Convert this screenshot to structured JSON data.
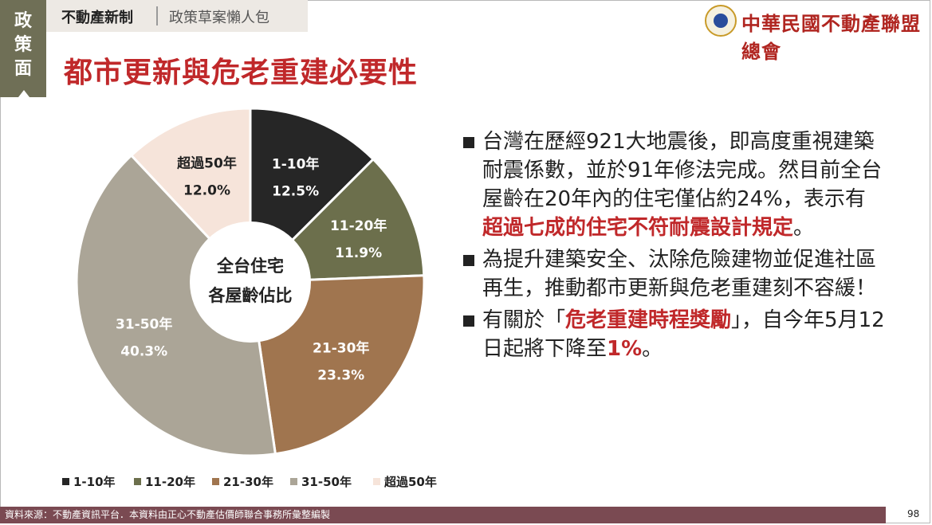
{
  "side_tab": {
    "chars": [
      "政",
      "策",
      "面"
    ]
  },
  "breadcrumb": {
    "main": "不動產新制",
    "sub": "政策草案懶人包"
  },
  "org_name": "中華民國不動產聯盟總會",
  "title": "都市更新與危老重建必要性",
  "chart_center": {
    "line1": "全台住宅",
    "line2": "各屋齡佔比"
  },
  "chart_data": {
    "type": "pie",
    "categories": [
      "1-10年",
      "11-20年",
      "21-30年",
      "31-50年",
      "超過50年"
    ],
    "values": [
      12.5,
      11.9,
      23.3,
      40.3,
      12.0
    ],
    "value_labels": [
      "12.5%",
      "11.9%",
      "23.3%",
      "40.3%",
      "12.0%"
    ],
    "colors": [
      "#262626",
      "#6c6f4c",
      "#a0754f",
      "#aba597",
      "#f6e4da"
    ],
    "label_colors": [
      "#ffffff",
      "#ffffff",
      "#ffffff",
      "#ffffff",
      "#222222"
    ],
    "legend_position": "bottom",
    "donut_hole_text": "全台住宅 各屋齡佔比"
  },
  "bullets": [
    {
      "segments": [
        {
          "text": "台灣在歷經921大地震後，即高度重視建築耐震係數，並於91年修法完成。然目前全台屋齡在20年內的住宅僅佔約24%，表示有",
          "hl": false
        },
        {
          "text": "超過七成的住宅不符耐震設計規定",
          "hl": true
        },
        {
          "text": "。",
          "hl": false
        }
      ]
    },
    {
      "segments": [
        {
          "text": "為提升建築安全、汰除危險建物並促進社區再生，推動都市更新與危老重建刻不容緩！",
          "hl": false
        }
      ]
    },
    {
      "segments": [
        {
          "text": "有關於「",
          "hl": false
        },
        {
          "text": "危老重建時程獎勵",
          "hl": true
        },
        {
          "text": "」，自今年5月12日起將下降至",
          "hl": false
        },
        {
          "text": "1%",
          "hl": true
        },
        {
          "text": "。",
          "hl": false
        }
      ]
    }
  ],
  "footer": {
    "source": "資料來源：不動產資訊平台．本資料由正心不動產估價師聯合事務所彙整編製",
    "page": "98"
  }
}
